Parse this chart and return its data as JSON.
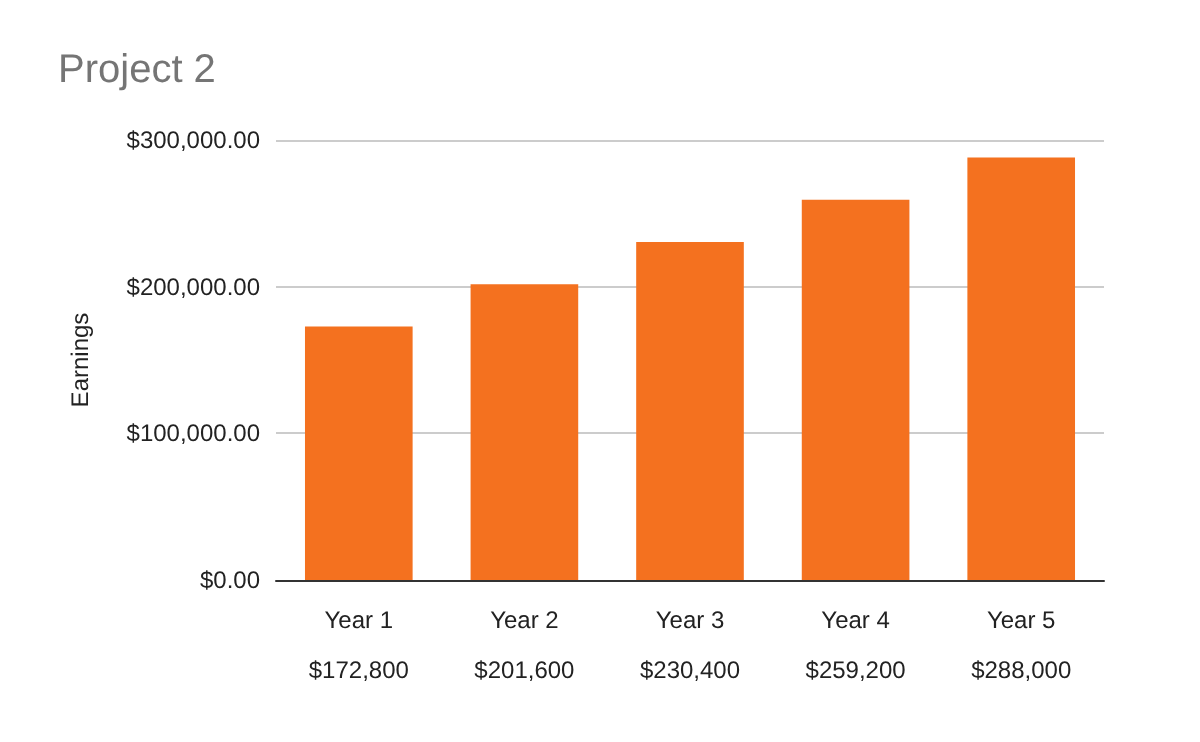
{
  "chart_data": {
    "type": "bar",
    "title": "Project 2",
    "ylabel": "Earnings",
    "categories": [
      "Year 1",
      "Year 2",
      "Year 3",
      "Year 4",
      "Year 5"
    ],
    "values": [
      172800,
      201600,
      230400,
      259200,
      288000
    ],
    "value_labels": [
      "$172,800",
      "$201,600",
      "$230,400",
      "$259,200",
      "$288,000"
    ],
    "color": "#f4711f",
    "ylim": [
      0,
      300000
    ],
    "yticks": [
      {
        "value": 0,
        "label": "$0.00"
      },
      {
        "value": 100000,
        "label": "$100,000.00"
      },
      {
        "value": 200000,
        "label": "$200,000.00"
      },
      {
        "value": 300000,
        "label": "$300,000.00"
      }
    ],
    "grid": true
  }
}
